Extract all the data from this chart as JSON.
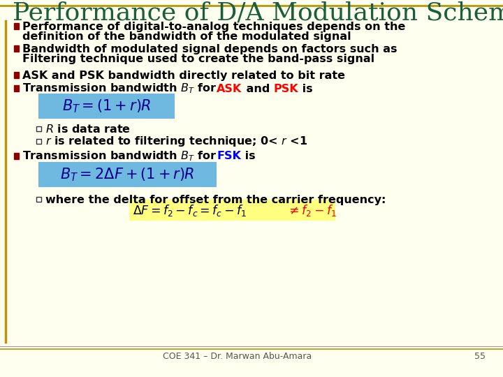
{
  "title": "Performance of D/A Modulation Schemes",
  "title_color": "#1B5E3B",
  "title_fontsize": 26,
  "background_color": "#FFFFF0",
  "border_top_color": "#B8960C",
  "border_left_color": "#B8960C",
  "bullet_color": "#8B0000",
  "text_color": "#000000",
  "text_fontsize": 11.5,
  "footer_text": "COE 341 – Dr. Marwan Abu-Amara",
  "footer_page": "55",
  "formula1_bg": "#6FB8E0",
  "formula2_bg": "#6FB8E0",
  "highlight_yellow": "#FFFF80",
  "ask_color": "#FF0000",
  "fsk_color": "#0000FF",
  "psk_color": "#FF0000",
  "formula_text_color": "#00008B"
}
